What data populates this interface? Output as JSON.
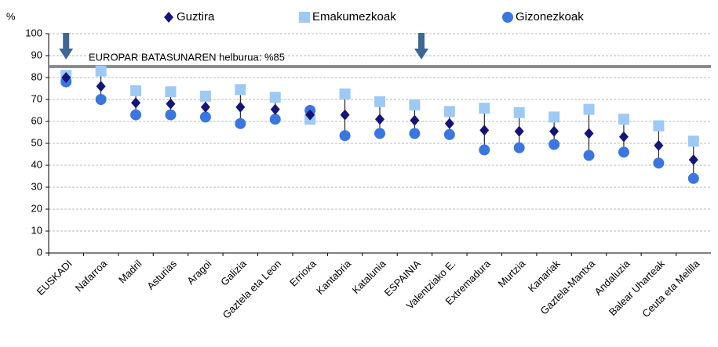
{
  "chart_data": {
    "type": "dot",
    "ylabel": "%",
    "categories": [
      "EUSKADI",
      "Nafarroa",
      "Madril",
      "Asturias",
      "Aragoi",
      "Galizia",
      "Gaztela eta Leon",
      "Errioxa",
      "Kantabria",
      "Katalunia",
      "ESPAINIA",
      "Valentziako E.",
      "Extremadura",
      "Murtzia",
      "Kanariak",
      "Gaztela-Mantxa",
      "Andaluzia",
      "Balear Uharteak",
      "Ceuta eta Melilla"
    ],
    "series": [
      {
        "name": "Guztira",
        "color": "#14147a",
        "marker": "diamond",
        "values": [
          80,
          76,
          68.5,
          68,
          66.5,
          66.5,
          65.5,
          63,
          63,
          61,
          60.5,
          59,
          56,
          55.5,
          55.5,
          54.5,
          53,
          49,
          42.5
        ]
      },
      {
        "name": "Emakumezkoak",
        "color": "#9dc9f5",
        "marker": "square",
        "values": [
          81,
          83,
          74,
          73.5,
          71.5,
          74.5,
          71,
          61,
          72.5,
          69,
          67.5,
          64.5,
          66,
          64,
          62,
          65.5,
          61,
          58,
          51
        ]
      },
      {
        "name": "Gizonezkoak",
        "color": "#3a76e0",
        "marker": "circle",
        "values": [
          78,
          70,
          63,
          63,
          62,
          59,
          61,
          65,
          53.5,
          54.5,
          54.5,
          54,
          47,
          48,
          49.5,
          44.5,
          46,
          41,
          34
        ]
      }
    ],
    "ylim": [
      0,
      100
    ],
    "yticks": [
      0,
      10,
      20,
      30,
      40,
      50,
      60,
      70,
      80,
      90,
      100
    ],
    "grid": true,
    "target": {
      "value": 85,
      "label": "EUROPAR BATASUNAREN helburua: %85",
      "color": "#8c8c8c"
    }
  }
}
